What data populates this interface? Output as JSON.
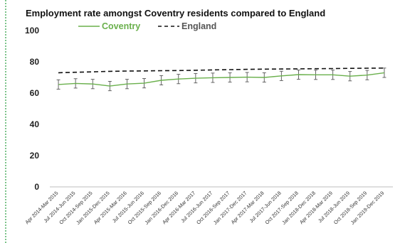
{
  "chart_data": {
    "type": "line",
    "title": "Employment rate amongst Coventry residents compared to England",
    "xlabel": "",
    "ylabel": "",
    "ylim": [
      0,
      100
    ],
    "yticks": [
      0,
      20,
      40,
      60,
      80,
      100
    ],
    "grid": false,
    "legend_position": "top",
    "categories": [
      "Apr 2014-Mar 2015",
      "Jul 2014-Jun 2015",
      "Oct 2014-Sep 2015",
      "Jan 2015-Dec 2015",
      "Apr 2015-Mar 2016",
      "Jul 2015-Jun 2016",
      "Oct 2015-Sep 2016",
      "Jan 2016-Dec 2016",
      "Apr 2016-Mar 2017",
      "Jul 2016-Jun 2017",
      "Oct 2016-Sep 2017",
      "Jan 2017-Dec 2017",
      "Apr 2017-Mar 2018",
      "Jul 2017-Jun 2018",
      "Oct 2017-Sep 2018",
      "Jan 2018-Dec 2018",
      "Apr 2018-Mar 2019",
      "Jul 2018-Jun 2019",
      "Oct 2018-Sep 2019",
      "Jan 2019-Dec 2019"
    ],
    "series": [
      {
        "name": "Coventry",
        "style": "solid",
        "color": "#6ab04c",
        "values": [
          65.5,
          66.2,
          65.8,
          64.5,
          65.8,
          66.3,
          68.2,
          69.0,
          69.5,
          69.8,
          70.0,
          70.2,
          70.0,
          71.0,
          71.8,
          71.7,
          71.7,
          70.8,
          71.5,
          73.0
        ],
        "error": [
          3,
          3,
          3,
          3,
          3,
          3,
          3,
          3,
          3,
          3,
          3,
          3,
          3,
          3,
          3,
          3,
          3,
          3,
          3,
          3
        ]
      },
      {
        "name": "England",
        "style": "dashed",
        "color": "#111111",
        "values": [
          73.0,
          73.3,
          73.6,
          73.9,
          74.1,
          74.2,
          74.3,
          74.4,
          74.6,
          74.8,
          75.0,
          75.2,
          75.3,
          75.4,
          75.5,
          75.6,
          75.7,
          75.8,
          75.9,
          76.0
        ]
      }
    ]
  }
}
